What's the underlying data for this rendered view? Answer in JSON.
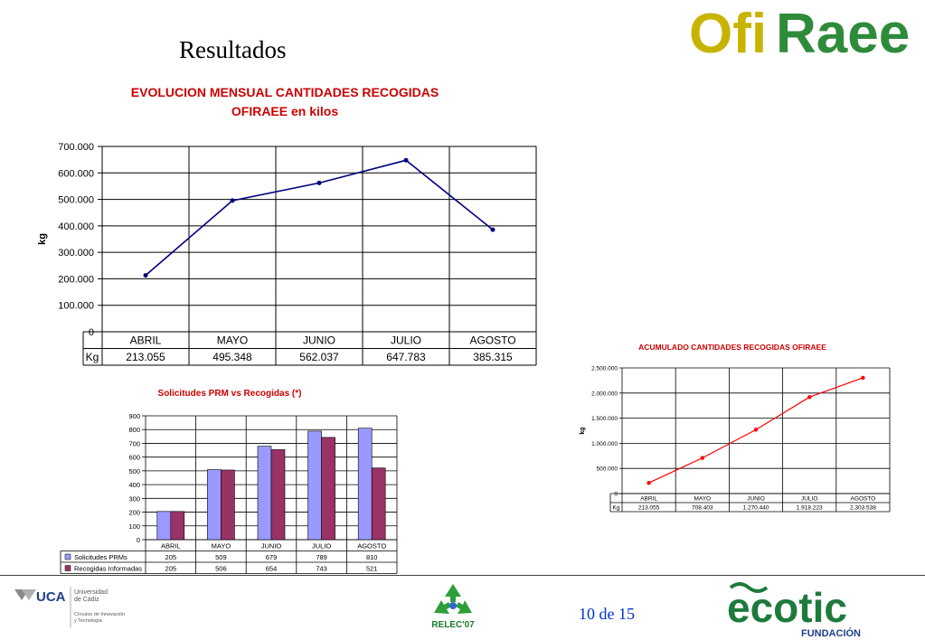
{
  "slide": {
    "title": "Resultados",
    "page_number": "10 de 15"
  },
  "logos": {
    "ofiraee": {
      "part1": "Ofi",
      "part2": "Raee",
      "color1": "#c8b400",
      "color2": "#2e8b3a"
    },
    "uca": {
      "brand": "UCA",
      "line1": "Universidad",
      "line2": "de Cádiz",
      "line3": "Círculos de Innovación",
      "line4": "y Tecnología"
    },
    "relec": {
      "text": "RELEC'07"
    },
    "ecotic": {
      "text": "ecotic",
      "sub": "FUNDACIÓN"
    }
  },
  "chart_data": [
    {
      "type": "line",
      "title": "EVOLUCION MENSUAL CANTIDADES RECOGIDAS OFIRAEE en kilos",
      "title_lines": [
        "EVOLUCION MENSUAL CANTIDADES RECOGIDAS",
        "OFIRAEE en kilos"
      ],
      "ylabel": "kg",
      "ylim": [
        0,
        700000
      ],
      "yticks": [
        0,
        100000,
        200000,
        300000,
        400000,
        500000,
        600000,
        700000
      ],
      "ytick_labels": [
        "0",
        "100.000",
        "200.000",
        "300.000",
        "400.000",
        "500.000",
        "600.000",
        "700.000"
      ],
      "categories": [
        "ABRIL",
        "MAYO",
        "JUNIO",
        "JULIO",
        "AGOSTO"
      ],
      "table_row_label": "Kg",
      "table_values": [
        "213.055",
        "495.348",
        "562.037",
        "647.783",
        "385.315"
      ],
      "values": [
        213055,
        495348,
        562037,
        647783,
        385315
      ],
      "line_color": "#000080",
      "grid": true
    },
    {
      "type": "bar",
      "title": "Solicitudes PRM vs Recogidas (*)",
      "ylim": [
        0,
        900
      ],
      "yticks": [
        0,
        100,
        200,
        300,
        400,
        500,
        600,
        700,
        800,
        900
      ],
      "categories": [
        "ABRIL",
        "MAYO",
        "JUNIO",
        "JULIO",
        "AGOSTO"
      ],
      "series": [
        {
          "name": "Solicitudes PRMs",
          "values": [
            205,
            509,
            679,
            789,
            810
          ],
          "labels": [
            "205",
            "509",
            "679",
            "789",
            "810"
          ],
          "color": "#9999ff"
        },
        {
          "name": "Recogidas Informadas",
          "values": [
            205,
            506,
            654,
            743,
            521
          ],
          "labels": [
            "205",
            "506",
            "654",
            "743",
            "521"
          ],
          "color": "#993366"
        }
      ],
      "grid": true
    },
    {
      "type": "line",
      "title": "ACUMULADO CANTIDADES RECOGIDAS OFIRAEE",
      "ylabel": "kg",
      "ylim": [
        0,
        2500000
      ],
      "yticks": [
        0,
        500000,
        1000000,
        1500000,
        2000000,
        2500000
      ],
      "ytick_labels": [
        "0",
        "500.000",
        "1.000.000",
        "1.500.000",
        "2.000.000",
        "2.500.000"
      ],
      "categories": [
        "ABRIL",
        "MAYO",
        "JUNIO",
        "JULIO",
        "AGOSTO"
      ],
      "table_row_label": "Kg",
      "table_values": [
        "213.055",
        "708.403",
        "1.270.440",
        "1.918.223",
        "2.303.538"
      ],
      "values": [
        213055,
        708403,
        1270440,
        1918223,
        2303538
      ],
      "line_color": "#ff0000",
      "grid": true
    }
  ]
}
